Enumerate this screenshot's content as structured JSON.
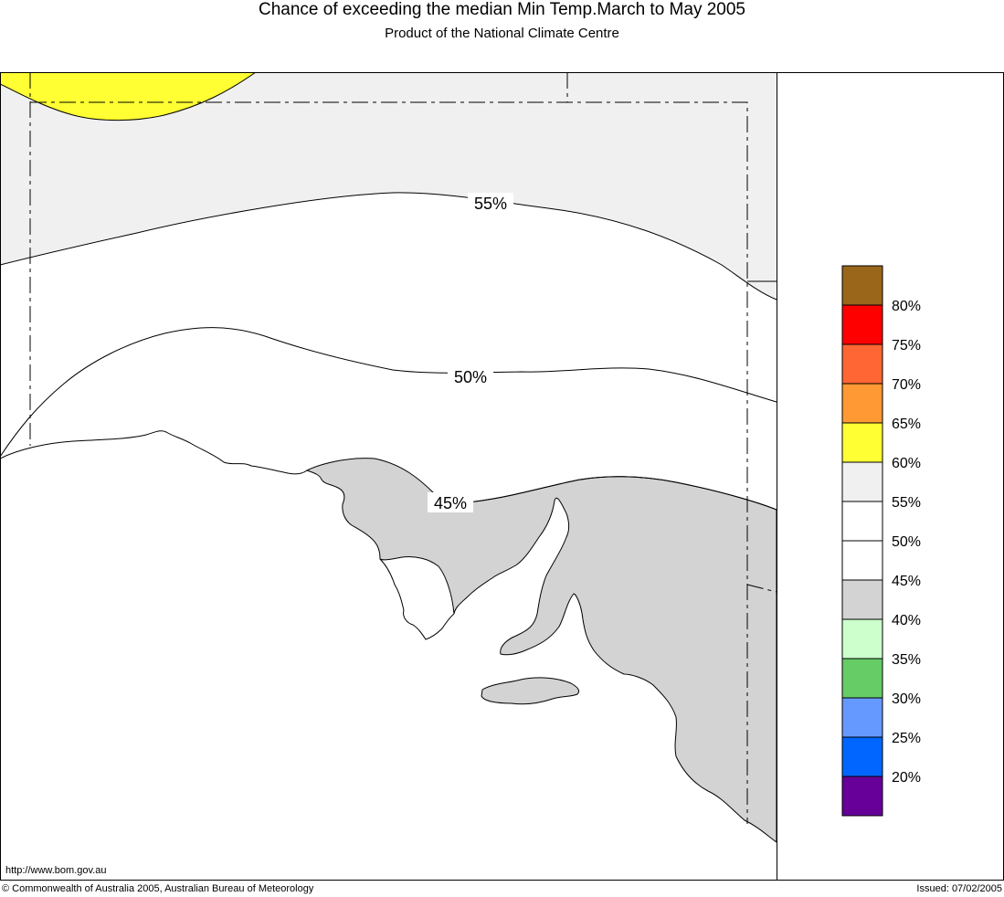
{
  "header": {
    "title": "Chance of exceeding the median Min Temp.March to May 2005",
    "subtitle": "Product of the National Climate Centre"
  },
  "footer": {
    "url": "http://www.bom.gov.au",
    "copyright": "© Commonwealth of Australia 2005, Australian Bureau of Meteorology",
    "issued": "Issued: 07/02/2005"
  },
  "map": {
    "region": "South Australia",
    "contour_labels": [
      "55%",
      "50%",
      "45%"
    ],
    "fill_colors": {
      "land_40_45": "#d3d3d3",
      "band_55_60": "#f0f0f0",
      "band_60_65": "#ffff33",
      "sea": "#ffffff"
    }
  },
  "legend": {
    "bins": [
      {
        "color": "#99661a"
      },
      {
        "color": "#ff0000",
        "label": "80%"
      },
      {
        "color": "#ff6633",
        "label": "75%"
      },
      {
        "color": "#ff9933",
        "label": "70%"
      },
      {
        "color": "#ffff33",
        "label": "65%"
      },
      {
        "color": "#f0f0f0",
        "label": "60%"
      },
      {
        "color": "#ffffff",
        "label": "55%"
      },
      {
        "color": "#ffffff",
        "label": "50%"
      },
      {
        "color": "#d3d3d3",
        "label": "45%"
      },
      {
        "color": "#ccffcc",
        "label": "40%"
      },
      {
        "color": "#66cc66",
        "label": "35%"
      },
      {
        "color": "#6699ff",
        "label": "30%"
      },
      {
        "color": "#0066ff",
        "label": "25%"
      },
      {
        "color": "#660099",
        "label": "20%"
      }
    ]
  }
}
